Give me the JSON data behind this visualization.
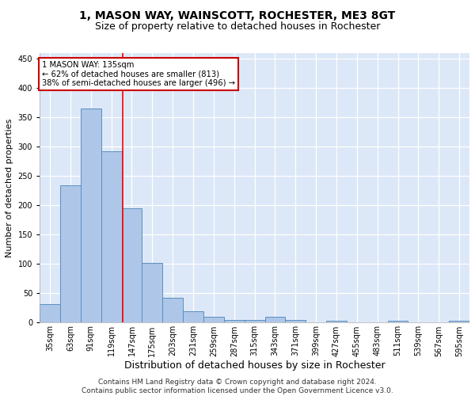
{
  "title": "1, MASON WAY, WAINSCOTT, ROCHESTER, ME3 8GT",
  "subtitle": "Size of property relative to detached houses in Rochester",
  "xlabel": "Distribution of detached houses by size in Rochester",
  "ylabel": "Number of detached properties",
  "categories": [
    "35sqm",
    "63sqm",
    "91sqm",
    "119sqm",
    "147sqm",
    "175sqm",
    "203sqm",
    "231sqm",
    "259sqm",
    "287sqm",
    "315sqm",
    "343sqm",
    "371sqm",
    "399sqm",
    "427sqm",
    "455sqm",
    "483sqm",
    "511sqm",
    "539sqm",
    "567sqm",
    "595sqm"
  ],
  "values": [
    32,
    234,
    365,
    293,
    195,
    102,
    43,
    20,
    10,
    5,
    5,
    10,
    5,
    0,
    3,
    0,
    0,
    3,
    0,
    0,
    3
  ],
  "bar_color": "#aec6e8",
  "bar_edge_color": "#5a8fc0",
  "red_line_x": 3.571,
  "annotation_text": "1 MASON WAY: 135sqm\n← 62% of detached houses are smaller (813)\n38% of semi-detached houses are larger (496) →",
  "annotation_box_color": "#ffffff",
  "annotation_box_edge": "#cc0000",
  "footer_line1": "Contains HM Land Registry data © Crown copyright and database right 2024.",
  "footer_line2": "Contains public sector information licensed under the Open Government Licence v3.0.",
  "background_color": "#dce8f8",
  "ylim": [
    0,
    460
  ],
  "yticks": [
    0,
    50,
    100,
    150,
    200,
    250,
    300,
    350,
    400,
    450
  ],
  "title_fontsize": 10,
  "subtitle_fontsize": 9,
  "ylabel_fontsize": 8,
  "xlabel_fontsize": 9,
  "tick_fontsize": 7,
  "footer_fontsize": 6.5
}
